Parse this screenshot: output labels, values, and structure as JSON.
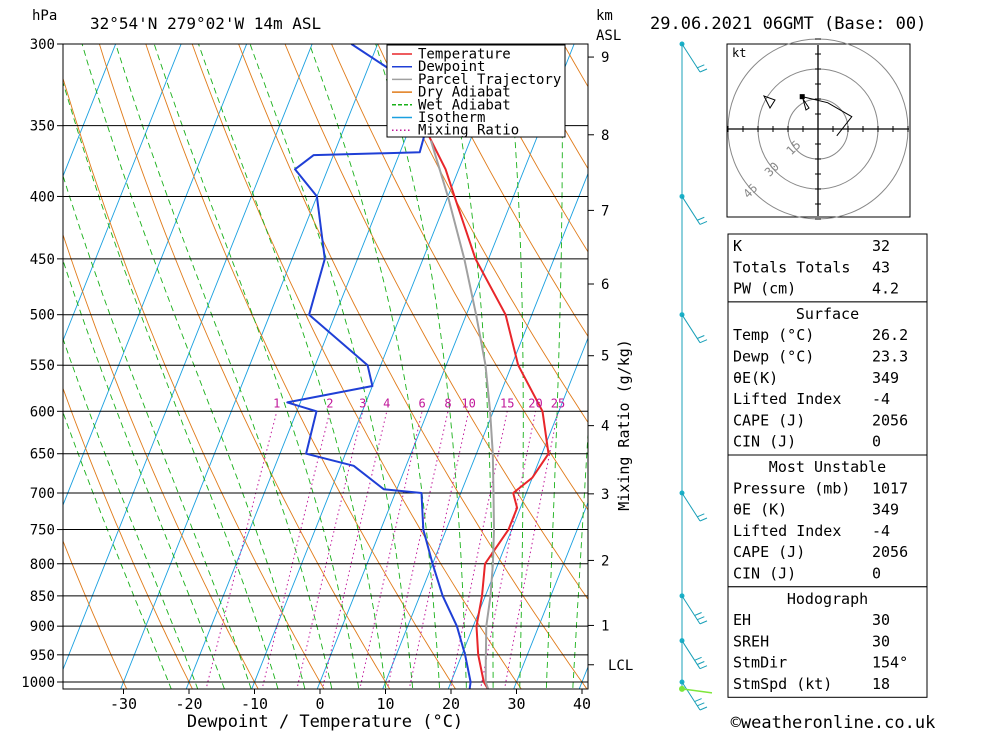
{
  "header": {
    "pressure_unit": "hPa",
    "location": "32°54'N  279°02'W  14m  ASL",
    "km_label": "km",
    "asl_label": "ASL",
    "datetime": "29.06.2021  06GMT  (Base: 00)"
  },
  "legend": [
    {
      "label": "Temperature",
      "color": "#e8262a",
      "style": "solid"
    },
    {
      "label": "Dewpoint",
      "color": "#1f3fd6",
      "style": "solid"
    },
    {
      "label": "Parcel Trajectory",
      "color": "#a0a0a0",
      "style": "solid"
    },
    {
      "label": "Dry Adiabat",
      "color": "#e07b1a",
      "style": "solid"
    },
    {
      "label": "Wet Adiabat",
      "color": "#19b019",
      "style": "dashed"
    },
    {
      "label": "Isotherm",
      "color": "#1aa0e0",
      "style": "solid"
    },
    {
      "label": "Mixing Ratio",
      "color": "#c0179a",
      "style": "dotted"
    }
  ],
  "chart_data": {
    "type": "line",
    "subtype": "skew-T log-P",
    "xlabel": "Dewpoint / Temperature (°C)",
    "ylabel": "hPa",
    "right_axis_label": "km ASL",
    "x_ticks": [
      -30,
      -20,
      -10,
      0,
      10,
      20,
      30,
      40
    ],
    "pressure_ticks": [
      300,
      350,
      400,
      450,
      500,
      550,
      600,
      650,
      700,
      750,
      800,
      850,
      900,
      950,
      1000
    ],
    "km_ticks": [
      1,
      2,
      3,
      4,
      5,
      6,
      7,
      8,
      9
    ],
    "lcl_label": "LCL",
    "mixing_ratio_label": "Mixing Ratio (g/kg)",
    "mixing_ratio_values": [
      "1",
      "2",
      "3",
      "4",
      "6",
      "8",
      "10",
      "15",
      "20",
      "25"
    ],
    "series": [
      {
        "name": "Temperature",
        "color": "#e8262a",
        "points": [
          [
            1015,
            26.2
          ],
          [
            1000,
            25
          ],
          [
            950,
            22.5
          ],
          [
            900,
            20.5
          ],
          [
            850,
            19.5
          ],
          [
            800,
            18
          ],
          [
            750,
            19.5
          ],
          [
            720,
            19.5
          ],
          [
            700,
            18
          ],
          [
            680,
            20
          ],
          [
            650,
            21
          ],
          [
            600,
            17.5
          ],
          [
            550,
            11
          ],
          [
            500,
            6
          ],
          [
            450,
            -2
          ],
          [
            400,
            -9
          ],
          [
            380,
            -12
          ],
          [
            350,
            -18
          ],
          [
            300,
            -27
          ]
        ]
      },
      {
        "name": "Dewpoint",
        "color": "#1f3fd6",
        "points": [
          [
            1015,
            23.3
          ],
          [
            1000,
            23
          ],
          [
            950,
            20.5
          ],
          [
            900,
            17.5
          ],
          [
            850,
            13.5
          ],
          [
            800,
            10
          ],
          [
            750,
            6.5
          ],
          [
            700,
            4
          ],
          [
            695,
            -2
          ],
          [
            665,
            -8
          ],
          [
            650,
            -16
          ],
          [
            600,
            -17
          ],
          [
            590,
            -22
          ],
          [
            572,
            -10
          ],
          [
            550,
            -12
          ],
          [
            500,
            -24
          ],
          [
            450,
            -25
          ],
          [
            400,
            -30
          ],
          [
            380,
            -35
          ],
          [
            370,
            -33
          ],
          [
            368,
            -17
          ],
          [
            350,
            -17.5
          ],
          [
            340,
            -22
          ],
          [
            320,
            -24
          ],
          [
            300,
            -34
          ]
        ]
      },
      {
        "name": "Parcel Trajectory",
        "color": "#a0a0a0",
        "points": [
          [
            1015,
            26.2
          ],
          [
            1000,
            25.3
          ],
          [
            960,
            24
          ],
          [
            900,
            22
          ],
          [
            850,
            20.8
          ],
          [
            800,
            19.2
          ],
          [
            750,
            17.3
          ],
          [
            700,
            15
          ],
          [
            650,
            12.5
          ],
          [
            600,
            9.5
          ],
          [
            550,
            6
          ],
          [
            500,
            1.5
          ],
          [
            450,
            -3.7
          ],
          [
            400,
            -10
          ],
          [
            360,
            -16
          ]
        ]
      }
    ],
    "hodograph": {
      "unit_label": "kt",
      "ring_labels": [
        "15",
        "30",
        "45"
      ],
      "wind_trace": [
        [
          154,
          18
        ],
        [
          200,
          14
        ],
        [
          250,
          18
        ],
        [
          290,
          10
        ]
      ]
    }
  },
  "indices": {
    "rows": [
      {
        "label": "K",
        "value": "32"
      },
      {
        "label": "Totals Totals",
        "value": "43"
      },
      {
        "label": "PW (cm)",
        "value": "4.2"
      }
    ]
  },
  "surface": {
    "title": "Surface",
    "rows": [
      {
        "label": "Temp (°C)",
        "value": "26.2"
      },
      {
        "label": "Dewp (°C)",
        "value": "23.3"
      },
      {
        "label": "θE(K)",
        "value": "349"
      },
      {
        "label": "Lifted Index",
        "value": "-4"
      },
      {
        "label": "CAPE (J)",
        "value": "2056"
      },
      {
        "label": "CIN (J)",
        "value": "0"
      }
    ]
  },
  "most_unstable": {
    "title": "Most Unstable",
    "rows": [
      {
        "label": "Pressure (mb)",
        "value": "1017"
      },
      {
        "label": "θE (K)",
        "value": "349"
      },
      {
        "label": "Lifted Index",
        "value": "-4"
      },
      {
        "label": "CAPE (J)",
        "value": "2056"
      },
      {
        "label": "CIN (J)",
        "value": "0"
      }
    ]
  },
  "hodograph_table": {
    "title": "Hodograph",
    "rows": [
      {
        "label": "EH",
        "value": "30"
      },
      {
        "label": "SREH",
        "value": "30"
      },
      {
        "label": "StmDir",
        "value": "154°"
      },
      {
        "label": "StmSpd (kt)",
        "value": "18"
      }
    ]
  },
  "footer": {
    "copyright": "©weatheronline.co.uk"
  }
}
